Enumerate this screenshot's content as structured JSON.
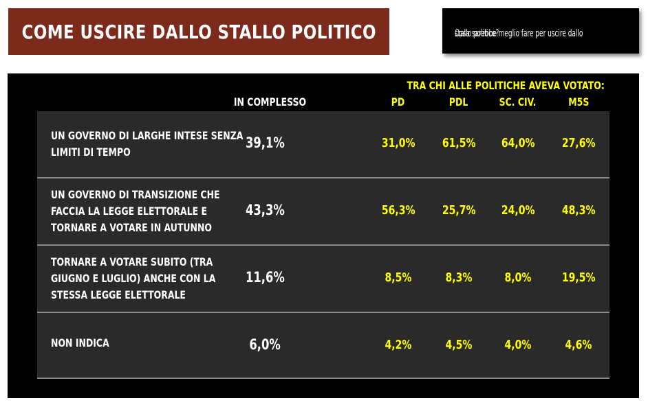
{
  "title": "COME USCIRE DALLO STALLO POLITICO",
  "question": [
    "Cosa sarebbe meglio fare per uscire dallo",
    "stallo politico?"
  ],
  "chart_data": {
    "type": "table",
    "group_header": "TRA CHI ALLE POLITICHE AVEVA VOTATO:",
    "columns": [
      "IN COMPLESSO",
      "PD",
      "PDL",
      "SC. CIV.",
      "M5S"
    ],
    "rows": [
      {
        "label_lines": [
          "UN GOVERNO DI LARGHE INTESE SENZA",
          "LIMITI DI TEMPO"
        ],
        "values": [
          "39,1%",
          "31,0%",
          "61,5%",
          "64,0%",
          "27,6%"
        ]
      },
      {
        "label_lines": [
          "UN GOVERNO DI TRANSIZIONE CHE",
          "FACCIA LA LEGGE ELETTORALE E",
          "TORNARE A VOTARE IN AUTUNNO"
        ],
        "values": [
          "43,3%",
          "56,3%",
          "25,7%",
          "24,0%",
          "48,3%"
        ]
      },
      {
        "label_lines": [
          "TORNARE A VOTARE SUBITO (TRA",
          "GIUGNO E LUGLIO) ANCHE CON LA",
          "STESSA LEGGE ELETTORALE"
        ],
        "values": [
          "11,6%",
          "8,5%",
          "8,3%",
          "8,0%",
          "19,5%"
        ]
      },
      {
        "label_lines": [
          "NON INDICA"
        ],
        "values": [
          "6,0%",
          "4,2%",
          "4,5%",
          "4,0%",
          "4,6%"
        ]
      }
    ],
    "colors": {
      "title_bg": "#7b2a1b",
      "panel_bg": "#000000",
      "row_bg": "#2a2a2a",
      "party_values": "#ffff00",
      "total_values": "#ffffff"
    }
  }
}
